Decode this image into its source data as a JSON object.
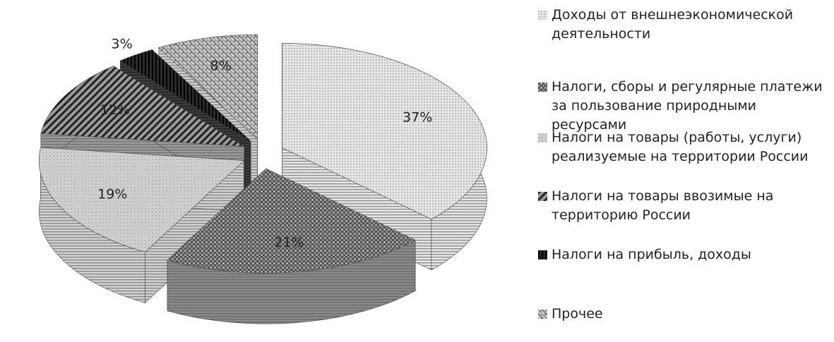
{
  "chart_data": {
    "type": "pie3d",
    "categories": [
      "Доходы от внешнеэкономической деятельности",
      "Налоги, сборы и регулярные платежи за пользование природными ресурсами",
      "Налоги на товары (работы, услуги) реализуемые на территории России",
      "Налоги на товары ввозимые на территорию России",
      "Налоги на прибыль, доходы",
      "Прочее"
    ],
    "values": [
      37,
      21,
      19,
      12,
      3,
      8
    ],
    "value_labels": [
      "37%",
      "21%",
      "19%",
      "12%",
      "3%",
      "8%"
    ],
    "colors": [
      "#e6e6e6",
      "#8a8a8a",
      "#d2d2d2",
      "#9a9a9a",
      "#2a2a2a",
      "#cfcfcf"
    ]
  }
}
